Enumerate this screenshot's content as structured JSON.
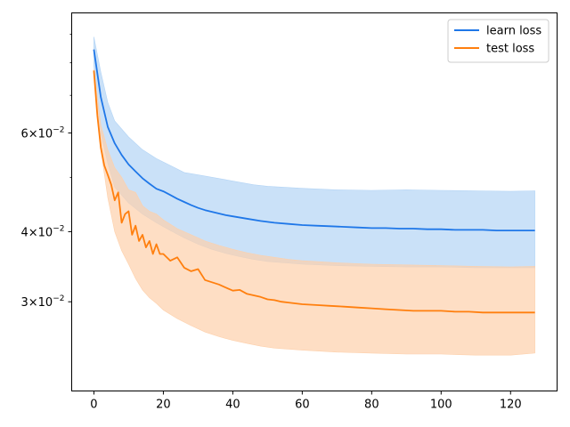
{
  "chart_data": {
    "type": "line",
    "title": "",
    "xlabel": "",
    "ylabel": "",
    "xlim": [
      -6.4,
      133.4
    ],
    "ylim": [
      0.0208,
      0.0982
    ],
    "yscale": "log",
    "grid": false,
    "legend_position": "top-right",
    "x_ticks": [
      0,
      20,
      40,
      60,
      80,
      100,
      120
    ],
    "x_tick_labels": [
      "0",
      "20",
      "40",
      "60",
      "80",
      "100",
      "120"
    ],
    "y_major_ticks": [
      0.03,
      0.04,
      0.06
    ],
    "y_tick_labels": [
      {
        "mantissa": "3",
        "base": "10",
        "exp": "−2"
      },
      {
        "mantissa": "4",
        "base": "10",
        "exp": "−2"
      },
      {
        "mantissa": "6",
        "base": "10",
        "exp": "−2"
      }
    ],
    "y_minor_ticks": [
      0.05,
      0.07,
      0.08,
      0.09
    ],
    "series": [
      {
        "name": "learn loss",
        "color": "#1f77e8",
        "band_color": "#b3d4f5",
        "band_opacity": 0.7,
        "mean": {
          "x": [
            0,
            2,
            4,
            6,
            8,
            10,
            12,
            14,
            16,
            18,
            20,
            22,
            24,
            26,
            28,
            30,
            32,
            34,
            36,
            38,
            40,
            44,
            48,
            52,
            56,
            60,
            64,
            68,
            72,
            76,
            80,
            84,
            88,
            92,
            96,
            100,
            104,
            108,
            112,
            116,
            120,
            124,
            127
          ],
          "y": [
            0.0845,
            0.0695,
            0.0615,
            0.0575,
            0.0548,
            0.0527,
            0.0512,
            0.0498,
            0.0487,
            0.0477,
            0.0472,
            0.0465,
            0.0458,
            0.0452,
            0.0446,
            0.0441,
            0.0437,
            0.0434,
            0.0431,
            0.0428,
            0.0426,
            0.0422,
            0.0418,
            0.0415,
            0.0413,
            0.0411,
            0.041,
            0.0409,
            0.0408,
            0.0407,
            0.0406,
            0.0406,
            0.0405,
            0.0405,
            0.0404,
            0.0404,
            0.0403,
            0.0403,
            0.0403,
            0.0402,
            0.0402,
            0.0402,
            0.0402
          ]
        },
        "upper": {
          "x": [
            0,
            2,
            4,
            6,
            10,
            14,
            18,
            22,
            26,
            30,
            34,
            38,
            42,
            46,
            50,
            60,
            70,
            80,
            90,
            100,
            110,
            120,
            127
          ],
          "y": [
            0.089,
            0.077,
            0.068,
            0.063,
            0.059,
            0.056,
            0.054,
            0.0525,
            0.051,
            0.0505,
            0.05,
            0.0495,
            0.049,
            0.0485,
            0.0482,
            0.0478,
            0.0475,
            0.0474,
            0.0475,
            0.0474,
            0.0473,
            0.0472,
            0.0473
          ]
        },
        "lower": {
          "x": [
            0,
            2,
            4,
            6,
            10,
            14,
            18,
            22,
            26,
            30,
            34,
            38,
            42,
            46,
            50,
            60,
            70,
            80,
            90,
            100,
            110,
            120,
            127
          ],
          "y": [
            0.079,
            0.06,
            0.053,
            0.048,
            0.045,
            0.043,
            0.0415,
            0.0402,
            0.039,
            0.038,
            0.0372,
            0.0366,
            0.0361,
            0.0357,
            0.0354,
            0.035,
            0.0348,
            0.0347,
            0.0346,
            0.0346,
            0.0345,
            0.0345,
            0.0345
          ]
        }
      },
      {
        "name": "test loss",
        "color": "#ff7f0e",
        "band_color": "#fdd0ab",
        "band_opacity": 0.7,
        "mean": {
          "x": [
            0,
            1,
            2,
            3,
            4,
            5,
            6,
            7,
            8,
            9,
            10,
            11,
            12,
            13,
            14,
            15,
            16,
            17,
            18,
            19,
            20,
            22,
            24,
            26,
            28,
            30,
            32,
            34,
            36,
            38,
            40,
            42,
            44,
            46,
            48,
            50,
            52,
            54,
            56,
            60,
            64,
            68,
            72,
            76,
            80,
            84,
            88,
            92,
            96,
            100,
            104,
            108,
            112,
            116,
            120,
            124,
            127
          ],
          "y": [
            0.0775,
            0.0645,
            0.0565,
            0.0525,
            0.0505,
            0.0485,
            0.0455,
            0.047,
            0.0415,
            0.043,
            0.0435,
            0.0395,
            0.041,
            0.0385,
            0.0395,
            0.0375,
            0.0385,
            0.0365,
            0.038,
            0.0365,
            0.0365,
            0.0355,
            0.036,
            0.0345,
            0.034,
            0.0343,
            0.0328,
            0.0325,
            0.0322,
            0.0318,
            0.0314,
            0.0315,
            0.031,
            0.0308,
            0.0306,
            0.0303,
            0.0302,
            0.03,
            0.0299,
            0.0297,
            0.0296,
            0.0295,
            0.0294,
            0.0293,
            0.0292,
            0.0291,
            0.029,
            0.0289,
            0.0289,
            0.0289,
            0.0288,
            0.0288,
            0.0287,
            0.0287,
            0.0287,
            0.0287,
            0.0287
          ]
        },
        "upper": {
          "x": [
            0,
            2,
            4,
            6,
            8,
            10,
            12,
            14,
            16,
            18,
            20,
            24,
            28,
            32,
            36,
            40,
            44,
            48,
            52,
            56,
            60,
            70,
            80,
            90,
            100,
            110,
            120,
            127
          ],
          "y": [
            0.078,
            0.062,
            0.056,
            0.052,
            0.05,
            0.0475,
            0.047,
            0.0445,
            0.0435,
            0.043,
            0.042,
            0.0405,
            0.0395,
            0.0385,
            0.0378,
            0.0372,
            0.0367,
            0.0363,
            0.036,
            0.0357,
            0.0355,
            0.0352,
            0.035,
            0.0349,
            0.0348,
            0.0347,
            0.0346,
            0.0347
          ]
        },
        "lower": {
          "x": [
            0,
            2,
            4,
            6,
            8,
            10,
            12,
            14,
            16,
            18,
            20,
            24,
            28,
            32,
            36,
            40,
            44,
            48,
            52,
            56,
            60,
            70,
            80,
            90,
            100,
            110,
            120,
            127
          ],
          "y": [
            0.077,
            0.056,
            0.046,
            0.04,
            0.037,
            0.035,
            0.033,
            0.0315,
            0.0305,
            0.0298,
            0.029,
            0.028,
            0.0272,
            0.0265,
            0.026,
            0.0256,
            0.0253,
            0.025,
            0.0248,
            0.0247,
            0.0246,
            0.0244,
            0.0243,
            0.0242,
            0.0242,
            0.0241,
            0.0241,
            0.0243
          ]
        }
      }
    ]
  }
}
